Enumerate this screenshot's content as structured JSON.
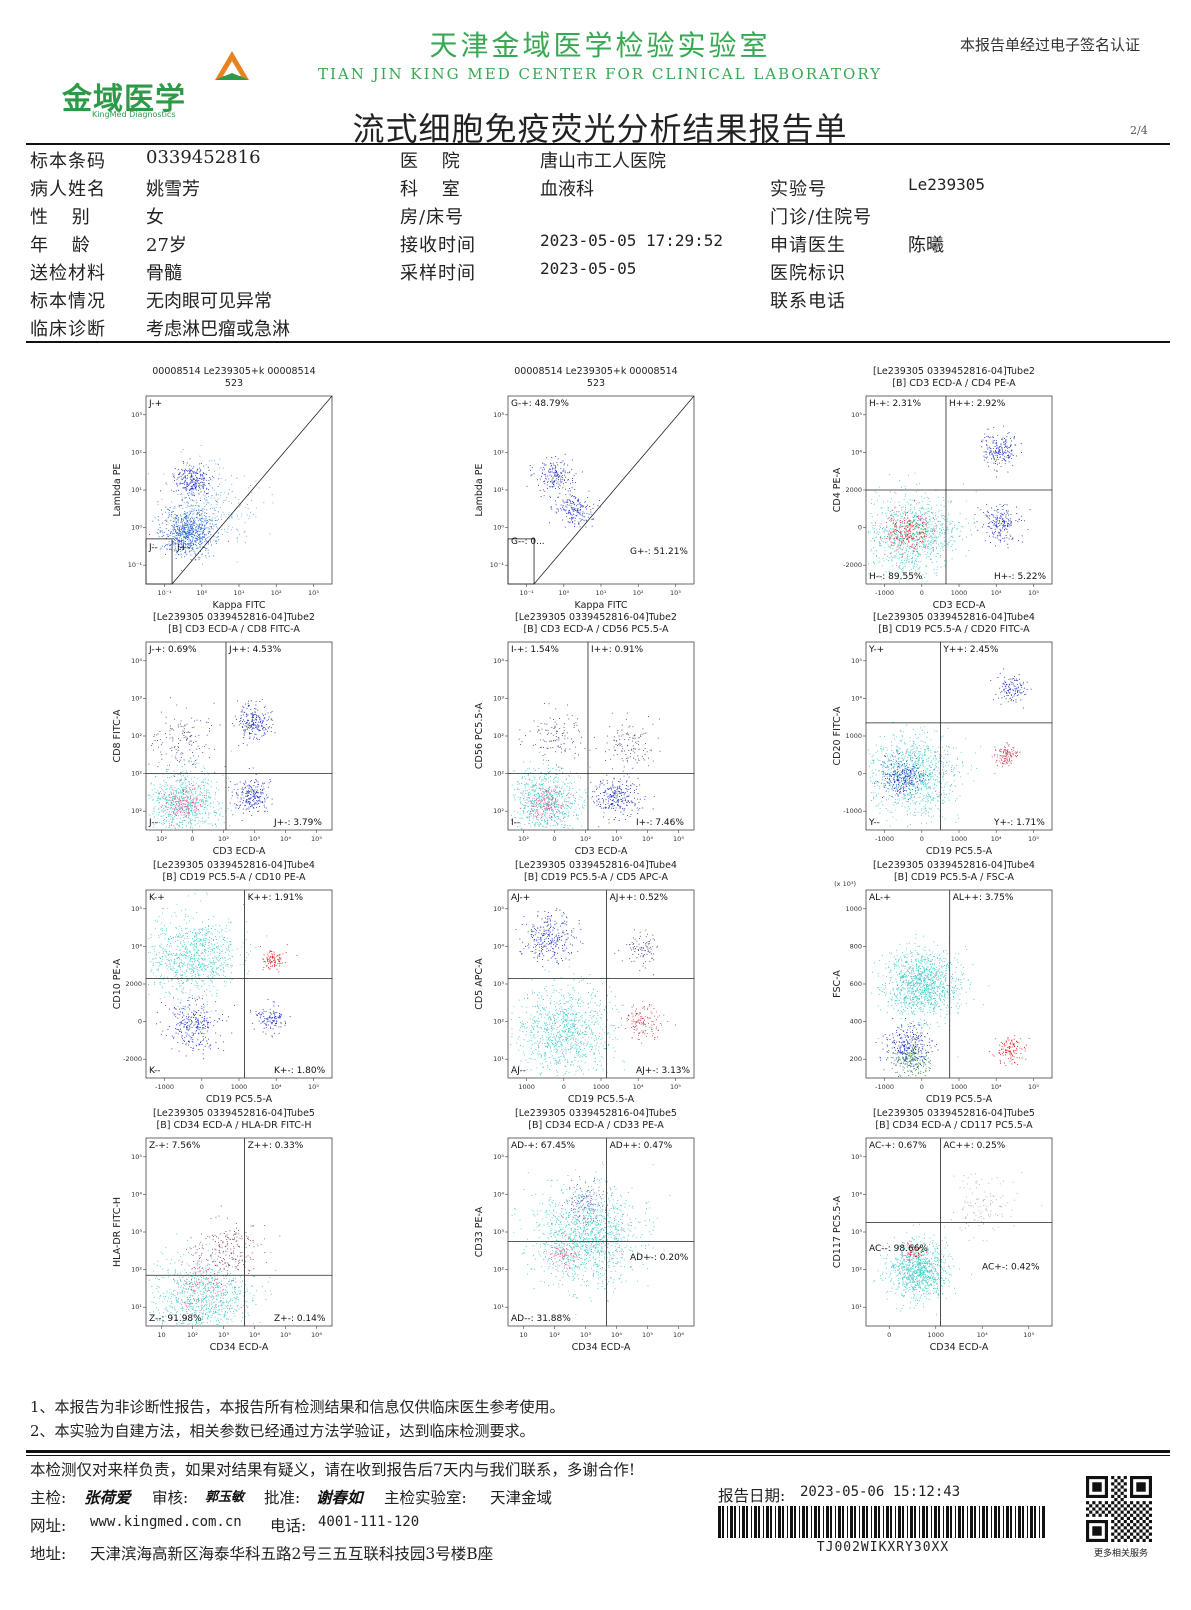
{
  "header": {
    "logo_text": "金域医学",
    "logo_sub": "KingMed Diagnostics",
    "lab_name_cn": "天津金域医学检验实验室",
    "lab_name_en": "TIAN JIN KING MED CENTER FOR CLINICAL LABORATORY",
    "signature_note": "本报告单经过电子签名认证",
    "title": "流式细胞免疫荧光分析结果报告单",
    "page": "2/4"
  },
  "patient": {
    "barcode_label": "标本条码",
    "barcode_value": "0339452816",
    "name_label": "病人姓名",
    "name_value": "姚雪芳",
    "sex_label": "性 别",
    "sex_value": "女",
    "age_label": "年 龄",
    "age_value": "27岁",
    "specimen_label": "送检材料",
    "specimen_value": "骨髓",
    "condition_label": "标本情况",
    "condition_value": "无肉眼可见异常",
    "diagnosis_label": "临床诊断",
    "diagnosis_value": "考虑淋巴瘤或急淋",
    "hospital_label": "医 院",
    "hospital_value": "唐山市工人医院",
    "dept_label": "科 室",
    "dept_value": "血液科",
    "bed_label": "房/床号",
    "bed_value": "",
    "received_label": "接收时间",
    "received_value": "2023-05-05 17:29:52",
    "sampled_label": "采样时间",
    "sampled_value": "2023-05-05",
    "labno_label": "实验号",
    "labno_value": "Le239305",
    "clinic_label": "门诊/住院号",
    "clinic_value": "",
    "doctor_label": "申请医生",
    "doctor_value": "陈曦",
    "hosp_id_label": "医院标识",
    "hosp_id_value": "",
    "phone_label": "联系电话",
    "phone_value": ""
  },
  "plots": [
    {
      "title1": "00008514 Le239305+k 00008514",
      "title2": "523",
      "xlabel": "Kappa FITC",
      "ylabel": "Lambda PE",
      "gates": [
        "J-+",
        "J--",
        "J+-"
      ],
      "xticks": [
        "10⁻¹",
        "10⁰",
        "10¹",
        "10²",
        "10³"
      ],
      "yticks": [
        "10³",
        "10²",
        "10¹",
        "10⁰",
        "10⁻¹"
      ]
    },
    {
      "title1": "00008514 Le239305+k 00008514",
      "title2": "523",
      "xlabel": "Kappa FITC",
      "ylabel": "Lambda PE",
      "gates": [
        "G-+: 48.79%",
        "G--: 0...",
        "G+-: 51.21%"
      ],
      "xticks": [
        "10⁻¹",
        "10⁰",
        "10¹",
        "10²",
        "10³"
      ],
      "yticks": [
        "10³",
        "10²",
        "10¹",
        "10⁰",
        "10⁻¹"
      ]
    },
    {
      "title1": "[Le239305  0339452816-04]Tube2",
      "title2": "[B] CD3 ECD-A / CD4 PE-A",
      "xlabel": "CD3 ECD-A",
      "ylabel": "CD4 PE-A",
      "gates": [
        "H-+: 2.31%",
        "H++: 2.92%",
        "H--: 89.55%",
        "H+-: 5.22%"
      ],
      "xticks": [
        "-1000",
        "0",
        "1000",
        "10⁴",
        "10⁵"
      ],
      "yticks": [
        "10⁵",
        "10⁴",
        "2000",
        "0",
        "-2000"
      ]
    },
    {
      "title1": "[Le239305  0339452816-04]Tube2",
      "title2": "[B] CD3 ECD-A / CD8 FITC-A",
      "xlabel": "CD3 ECD-A",
      "ylabel": "CD8 FITC-A",
      "gates": [
        "J-+: 0.69%",
        "J++: 4.53%",
        "J--",
        "J+-: 3.79%"
      ],
      "xticks": [
        "10²",
        "0",
        "10²",
        "10³",
        "10⁴",
        "10⁵"
      ],
      "yticks": [
        "10⁴",
        "10³",
        "10²",
        "10²",
        "10²"
      ]
    },
    {
      "title1": "[Le239305  0339452816-04]Tube2",
      "title2": "[B] CD3 ECD-A / CD56 PC5.5-A",
      "xlabel": "CD3 ECD-A",
      "ylabel": "CD56 PC5.5-A",
      "gates": [
        "I-+: 1.54%",
        "I++: 0.91%",
        "I--",
        "I+-: 7.46%"
      ],
      "xticks": [
        "10²",
        "0",
        "10²",
        "10³",
        "10⁴",
        "10⁵"
      ],
      "yticks": [
        "10⁴",
        "10³",
        "10²",
        "10²",
        "10²"
      ]
    },
    {
      "title1": "[Le239305  0339452816-04]Tube4",
      "title2": "[B] CD19  PC5.5-A / CD20 FITC-A",
      "xlabel": "CD19  PC5.5-A",
      "ylabel": "CD20 FITC-A",
      "gates": [
        "Y-+",
        "Y++: 2.45%",
        "Y--",
        "Y+-: 1.71%"
      ],
      "xticks": [
        "-1000",
        "0",
        "1000",
        "10⁴",
        "10⁵"
      ],
      "yticks": [
        "10⁵",
        "10⁴",
        "1000",
        "0",
        "-1000"
      ]
    },
    {
      "title1": "[Le239305  0339452816-04]Tube4",
      "title2": "[B] CD19  PC5.5-A / CD10 PE-A",
      "xlabel": "CD19  PC5.5-A",
      "ylabel": "CD10 PE-A",
      "gates": [
        "K-+",
        "K++: 1.91%",
        "K--",
        "K+-: 1.80%"
      ],
      "xticks": [
        "-1000",
        "0",
        "1000",
        "10⁴",
        "10⁵"
      ],
      "yticks": [
        "10⁵",
        "10⁴",
        "2000",
        "0",
        "-2000"
      ]
    },
    {
      "title1": "[Le239305  0339452816-04]Tube4",
      "title2": "[B] CD19  PC5.5-A / CD5 APC-A",
      "xlabel": "CD19  PC5.5-A",
      "ylabel": "CD5 APC-A",
      "gates": [
        "AJ-+",
        "AJ++: 0.52%",
        "AJ--",
        "AJ+-: 3.13%"
      ],
      "xticks": [
        "1000",
        "0",
        "1000",
        "10⁴",
        "10⁵"
      ],
      "yticks": [
        "10⁵",
        "10⁴",
        "10³",
        "10²",
        "10¹"
      ]
    },
    {
      "title1": "[Le239305  0339452816-04]Tube4",
      "title2": "[B] CD19  PC5.5-A / FSC-A",
      "xlabel": "CD19  PC5.5-A",
      "ylabel": "FSC-A",
      "gates": [
        "AL-+",
        "AL++: 3.75%"
      ],
      "xticks": [
        "-1000",
        "0",
        "1000",
        "10⁴",
        "10⁵"
      ],
      "yticks": [
        "1000",
        "800",
        "600",
        "400",
        "200"
      ],
      "yunit": "(x 10³)"
    },
    {
      "title1": "[Le239305  0339452816-04]Tube5",
      "title2": "[B] CD34 ECD-A / HLA-DR FITC-H",
      "xlabel": "CD34 ECD-A",
      "ylabel": "HLA-DR FITC-H",
      "gates": [
        "Z-+: 7.56%",
        "Z++: 0.33%",
        "Z--: 91.98%",
        "Z+-: 0.14%"
      ],
      "xticks": [
        "10",
        "10²",
        "10³",
        "10⁴",
        "10⁵",
        "10⁶"
      ],
      "yticks": [
        "10⁵",
        "10⁴",
        "10³",
        "10²",
        "10¹"
      ]
    },
    {
      "title1": "[Le239305  0339452816-04]Tube5",
      "title2": "[B] CD34 ECD-A / CD33 PE-A",
      "xlabel": "CD34 ECD-A",
      "ylabel": "CD33 PE-A",
      "gates": [
        "AD-+: 67.45%",
        "AD++: 0.47%",
        "AD+-: 0.20%",
        "AD--: 31.88%"
      ],
      "xticks": [
        "10",
        "10²",
        "10³",
        "10⁴",
        "10⁵",
        "10⁶"
      ],
      "yticks": [
        "10⁵",
        "10⁴",
        "10³",
        "10²",
        "10¹"
      ]
    },
    {
      "title1": "[Le239305  0339452816-04]Tube5",
      "title2": "[B] CD34 ECD-A / CD117 PC5.5-A",
      "xlabel": "CD34 ECD-A",
      "ylabel": "CD117 PC5.5-A",
      "gates": [
        "AC-+: 0.67%",
        "AC++: 0.25%",
        "AC--: 98.66%",
        "AC+-: 0.42%"
      ],
      "xticks": [
        "0",
        "1000",
        "10⁴",
        "10⁵"
      ],
      "yticks": [
        "10⁵",
        "10⁴",
        "10³",
        "10²",
        "10¹"
      ]
    }
  ],
  "notes": {
    "note1": "1、本报告为非诊断性报告，本报告所有检测结果和信息仅供临床医生参考使用。",
    "note2": "2、本实验为自建方法，相关参数已经通过方法学验证，达到临床检测要求。"
  },
  "footer": {
    "disclaimer": "本检测仅对来样负责，如果对结果有疑义，请在收到报告后7天内与我们联系，多谢合作!",
    "examiner_label": "主检:",
    "examiner_sig": "张荷爱",
    "reviewer_label": "审核:",
    "reviewer_sig": "郭玉敏",
    "approver_label": "批准:",
    "approver_sig": "谢春如",
    "lab_label": "主检实验室:",
    "lab_value": "天津金域",
    "report_date_label": "报告日期:",
    "report_date_value": "2023-05-06 15:12:43",
    "website_label": "网址:",
    "website_value": "www.kingmed.com.cn",
    "phone_label": "电话:",
    "phone_value": "4001-111-120",
    "address_label": "地址:",
    "address_value": "天津滨海高新区海泰华科五路2号三五互联科技园3号楼B座",
    "barcode_text": "TJ002WIKXRY30XX",
    "qr_caption": "更多相关服务"
  }
}
